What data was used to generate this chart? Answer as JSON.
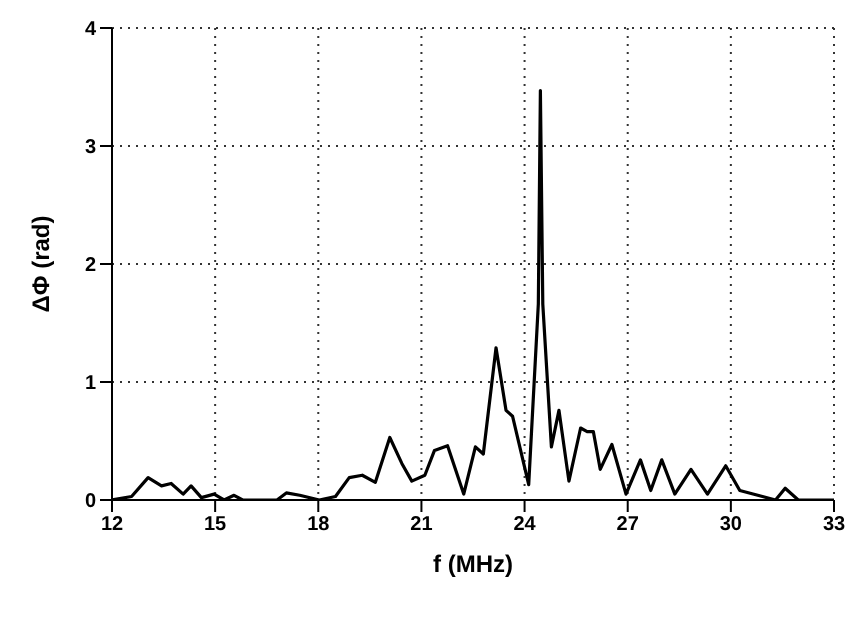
{
  "chart_data": {
    "type": "line",
    "xlabel": "f (MHz)",
    "ylabel": "ΔΦ (rad)",
    "xlim": [
      12,
      33
    ],
    "xticks": [
      12,
      15,
      18,
      21,
      24,
      27,
      30,
      33
    ],
    "ylim": [
      0,
      4
    ],
    "yticks": [
      0,
      1,
      2,
      3,
      4
    ],
    "grid": true,
    "marker": "none",
    "line_style": "solid",
    "series": [
      {
        "color": "#000000",
        "x": [
          12,
          12.57,
          13.05,
          13.44,
          13.72,
          14.07,
          14.3,
          14.6,
          14.97,
          15.26,
          15.55,
          15.8,
          16.8,
          17.07,
          17.46,
          18.03,
          18.5,
          18.9,
          19.28,
          19.66,
          20.08,
          20.43,
          20.72,
          21.1,
          21.38,
          21.76,
          22.23,
          22.57,
          22.8,
          23.17,
          23.46,
          23.65,
          24.12,
          24.4,
          24.46,
          24.53,
          24.78,
          25.0,
          25.29,
          25.63,
          25.82,
          26.0,
          26.2,
          26.54,
          26.95,
          27.37,
          27.67,
          27.99,
          28.37,
          28.84,
          29.32,
          29.85,
          30.26,
          30.92,
          31.3,
          31.58,
          31.96,
          33
        ],
        "values": [
          0,
          0.03,
          0.19,
          0.12,
          0.14,
          0.05,
          0.12,
          0.02,
          0.05,
          0,
          0.04,
          0,
          0,
          0.06,
          0.04,
          0,
          0.03,
          0.19,
          0.21,
          0.15,
          0.53,
          0.31,
          0.16,
          0.21,
          0.42,
          0.46,
          0.05,
          0.45,
          0.39,
          1.29,
          0.76,
          0.71,
          0.13,
          1.66,
          3.47,
          1.66,
          0.45,
          0.76,
          0.16,
          0.61,
          0.58,
          0.58,
          0.26,
          0.47,
          0.05,
          0.34,
          0.08,
          0.34,
          0.05,
          0.26,
          0.05,
          0.29,
          0.08,
          0.03,
          0,
          0.1,
          0,
          0
        ]
      }
    ]
  }
}
